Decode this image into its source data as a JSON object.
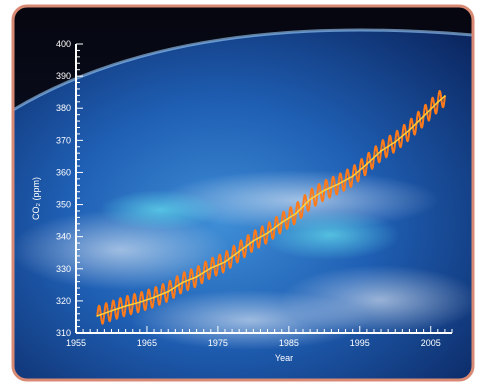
{
  "chart_data": {
    "type": "line",
    "title": "",
    "xlabel": "Year",
    "ylabel": "CO₂ (ppm)",
    "xlim": [
      1955,
      2008
    ],
    "ylim": [
      310,
      400
    ],
    "x_ticks": [
      "1955",
      "1965",
      "1975",
      "1985",
      "1995",
      "2005"
    ],
    "y_ticks": [
      "310",
      "320",
      "330",
      "340",
      "350",
      "360",
      "370",
      "380",
      "390",
      "400"
    ],
    "grid": false,
    "legend": "none",
    "series": [
      {
        "style": "monthly values, seasonal oscillation",
        "color": "#ff7a1a",
        "seasonal_amplitude": 3,
        "x": [
          1958,
          1960,
          1962,
          1964,
          1966,
          1968,
          1970,
          1972,
          1974,
          1976,
          1978,
          1980,
          1982,
          1984,
          1986,
          1988,
          1990,
          1992,
          1994,
          1996,
          1998,
          2000,
          2002,
          2004,
          2006,
          2007
        ],
        "values": [
          315.3,
          316.9,
          318.4,
          319.6,
          321.1,
          322.9,
          325.7,
          327.5,
          330.2,
          332.1,
          335.4,
          338.7,
          341.1,
          344.4,
          347.2,
          351.6,
          354.4,
          356.4,
          358.8,
          362.6,
          366.7,
          369.5,
          373.2,
          377.5,
          381.9,
          383.8
        ]
      },
      {
        "style": "annual trend",
        "color": "#ffd23a",
        "x": [
          1958,
          1960,
          1962,
          1964,
          1966,
          1968,
          1970,
          1972,
          1974,
          1976,
          1978,
          1980,
          1982,
          1984,
          1986,
          1988,
          1990,
          1992,
          1994,
          1996,
          1998,
          2000,
          2002,
          2004,
          2006,
          2007
        ],
        "values": [
          315.3,
          316.9,
          318.4,
          319.6,
          321.1,
          322.9,
          325.7,
          327.5,
          330.2,
          332.1,
          335.4,
          338.7,
          341.1,
          344.4,
          347.2,
          351.6,
          354.4,
          356.4,
          358.8,
          362.6,
          366.7,
          369.5,
          373.2,
          377.5,
          381.9,
          383.8
        ]
      }
    ]
  },
  "colors": {
    "frame": "#d98a74",
    "space": "#0a0d1e",
    "ocean": "#1c4f9c",
    "axis": "#ffffff"
  }
}
